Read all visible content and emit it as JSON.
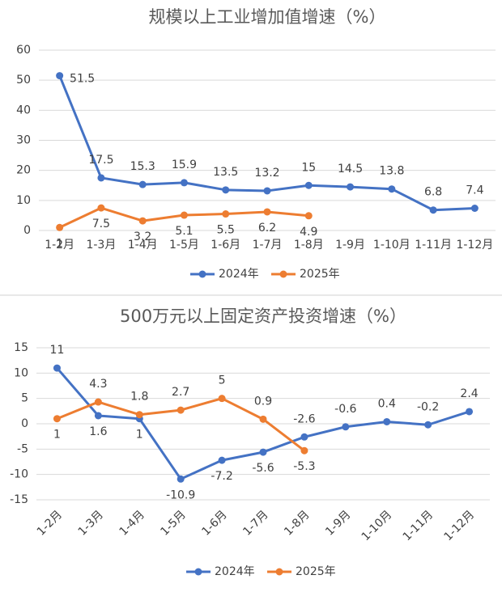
{
  "chart_data": [
    {
      "type": "line",
      "title": "规模以上工业增加值增速（%）",
      "categories": [
        "1-2月",
        "1-3月",
        "1-4月",
        "1-5月",
        "1-6月",
        "1-7月",
        "1-8月",
        "1-9月",
        "1-10月",
        "1-11月",
        "1-12月"
      ],
      "series": [
        {
          "name": "2024年",
          "color": "#4472c4",
          "values": [
            51.5,
            17.5,
            15.3,
            15.9,
            13.5,
            13.2,
            15,
            14.5,
            13.8,
            6.8,
            7.4
          ]
        },
        {
          "name": "2025年",
          "color": "#ed7d31",
          "values": [
            1,
            7.5,
            3.2,
            5.1,
            5.5,
            6.2,
            4.9,
            null,
            null,
            null,
            null
          ]
        }
      ],
      "ylim": [
        0,
        60
      ],
      "yticks": [
        0,
        10,
        20,
        30,
        40,
        50,
        60
      ],
      "grid": true,
      "legend": "bottom"
    },
    {
      "type": "line",
      "title": "500万元以上固定资产投资增速（%）",
      "categories": [
        "1-2月",
        "1-3月",
        "1-4月",
        "1-5月",
        "1-6月",
        "1-7月",
        "1-8月",
        "1-9月",
        "1-10月",
        "1-11月",
        "1-12月"
      ],
      "series": [
        {
          "name": "2024年",
          "color": "#4472c4",
          "values": [
            11,
            1.6,
            1,
            -10.9,
            -7.2,
            -5.6,
            -2.6,
            -0.6,
            0.4,
            -0.2,
            2.4
          ]
        },
        {
          "name": "2025年",
          "color": "#ed7d31",
          "values": [
            1,
            4.3,
            1.8,
            2.7,
            5,
            0.9,
            -5.3,
            null,
            null,
            null,
            null
          ]
        }
      ],
      "ylim": [
        -15,
        15
      ],
      "yticks": [
        -15,
        -10,
        -5,
        0,
        5,
        10,
        15
      ],
      "grid": true,
      "legend": "bottom"
    }
  ]
}
